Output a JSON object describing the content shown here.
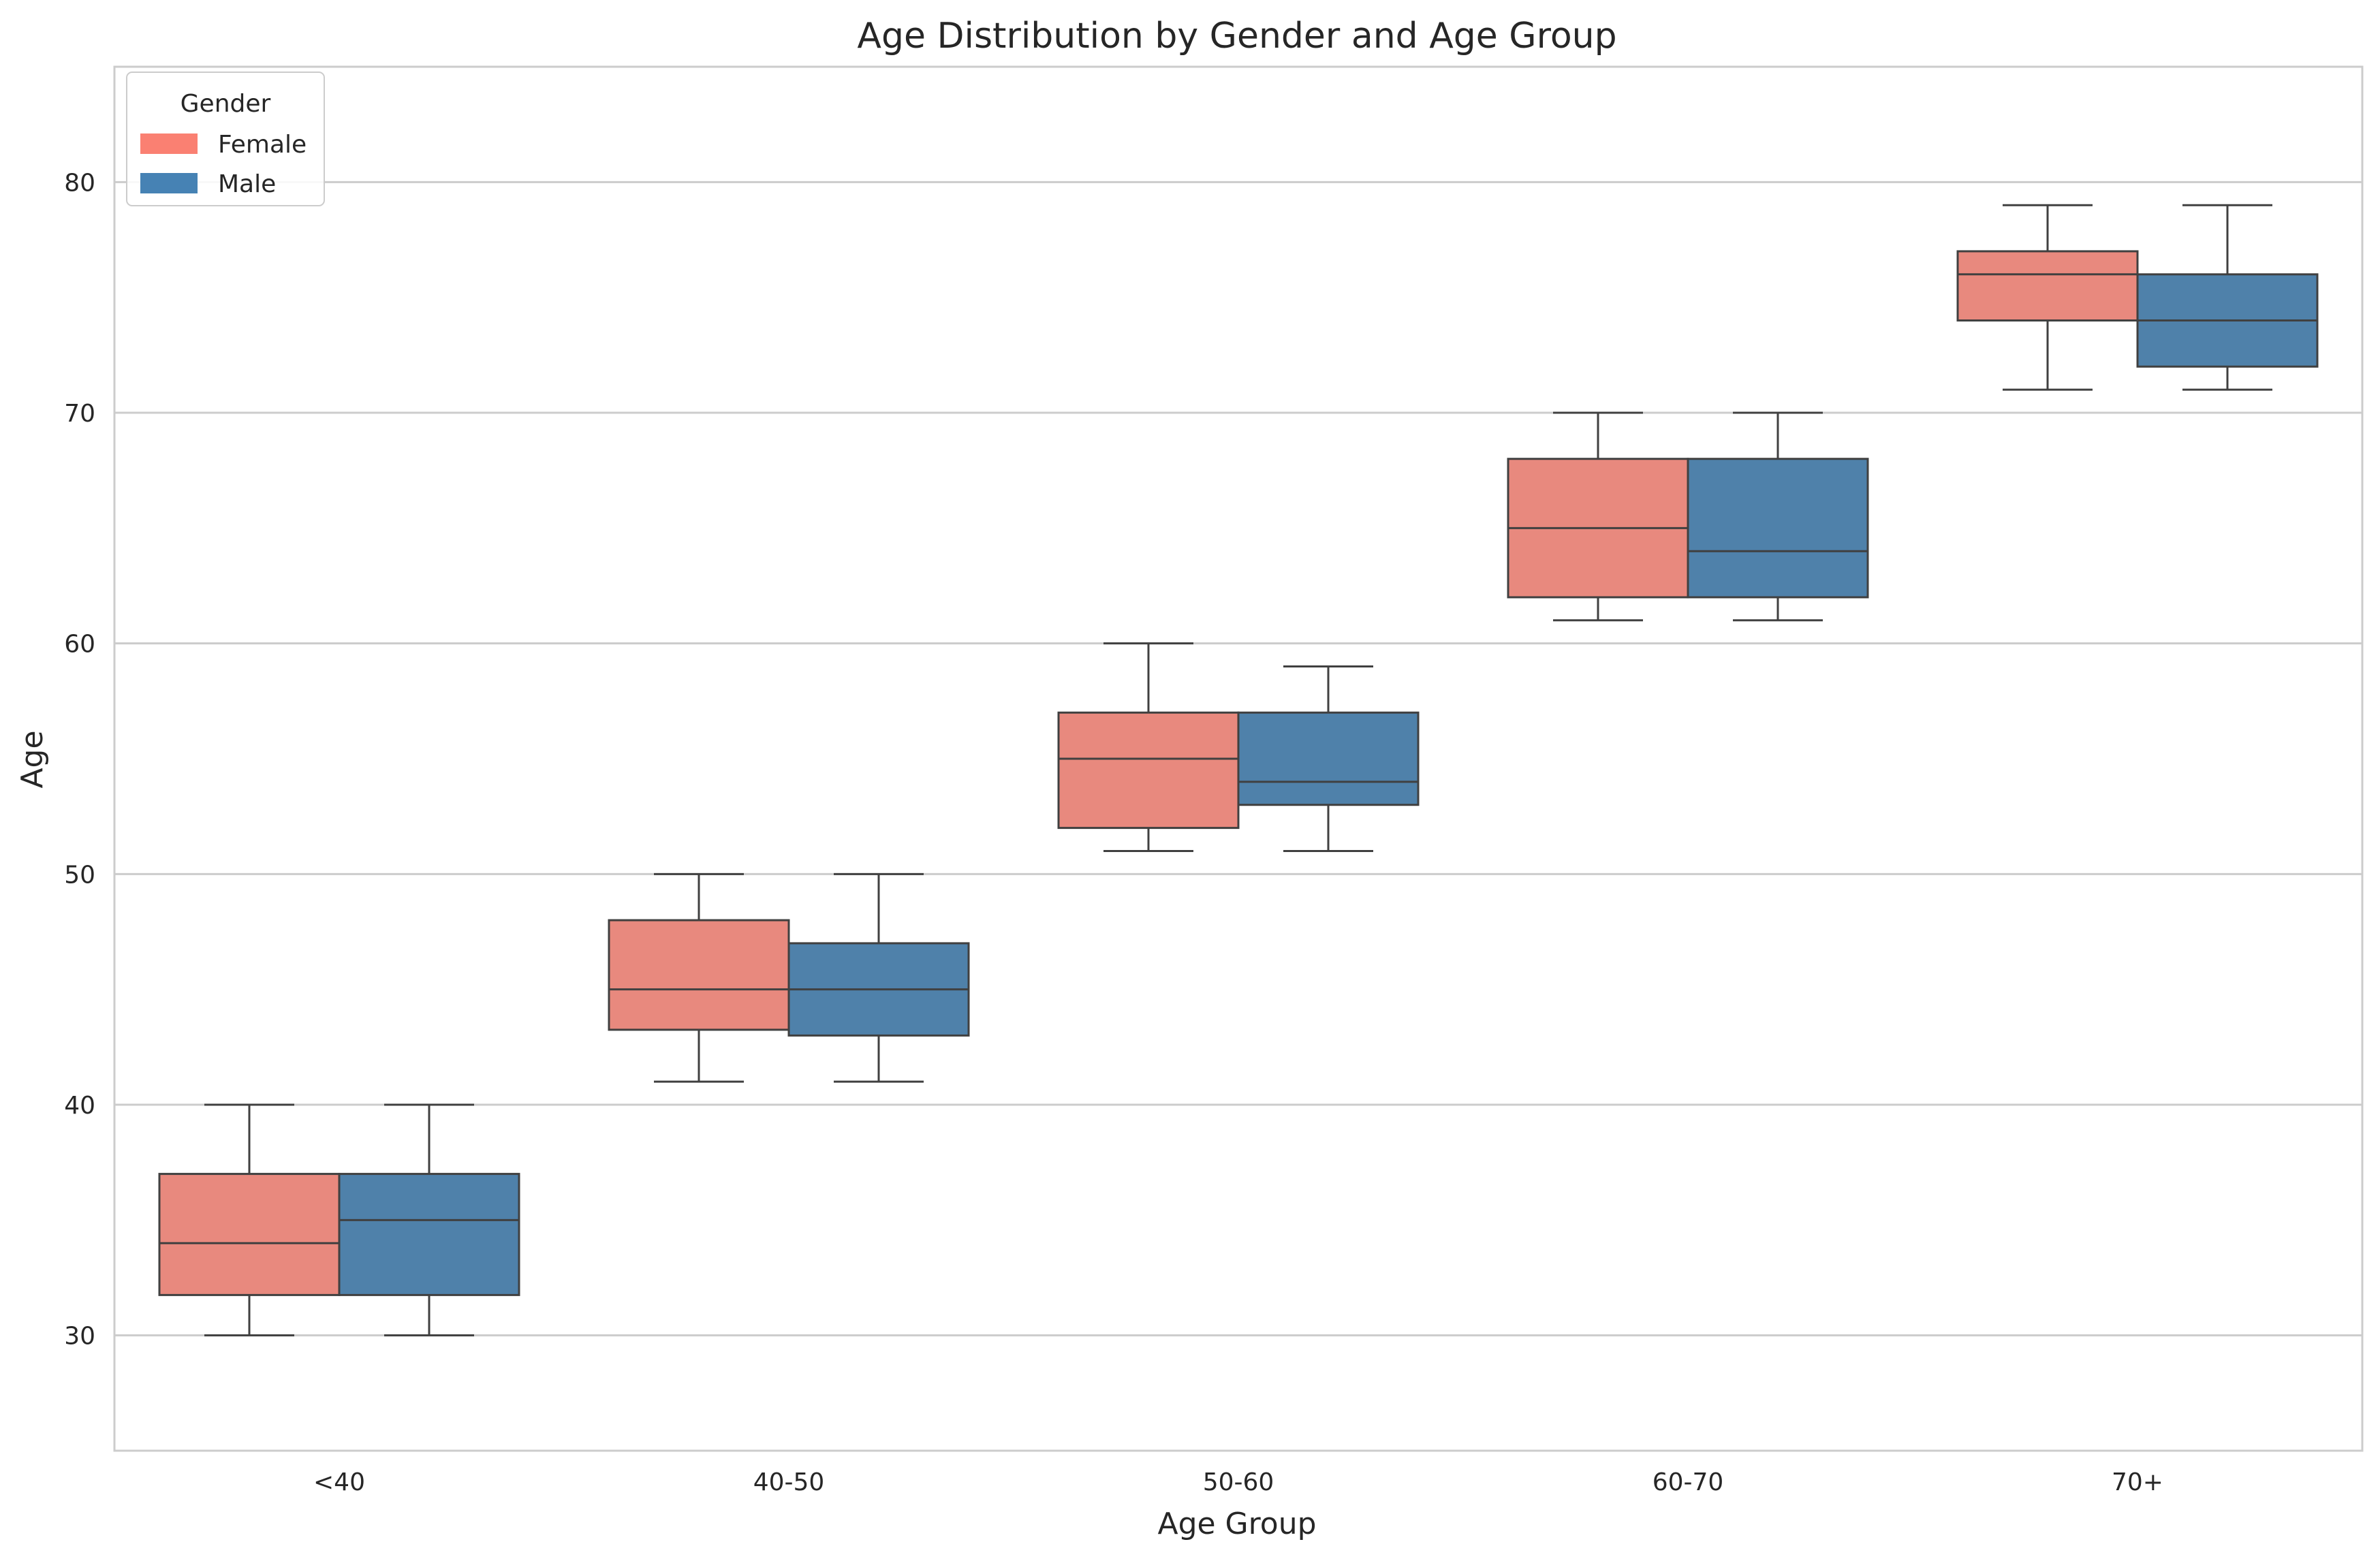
{
  "chart_data": {
    "type": "box",
    "title": "Age Distribution by Gender and Age Group",
    "xlabel": "Age Group",
    "ylabel": "Age",
    "categories": [
      "<40",
      "40-50",
      "50-60",
      "60-70",
      "70+"
    ],
    "ylim": [
      25,
      85
    ],
    "yticks": [
      "30",
      "40",
      "50",
      "60",
      "70",
      "80"
    ],
    "grid": "horizontal",
    "legend": {
      "title": "Gender",
      "placement": "top-left",
      "entries": [
        "Female",
        "Male"
      ]
    },
    "series": [
      {
        "name": "Female",
        "color": "#e8897e",
        "legend_color": "#fa8072",
        "boxes": [
          {
            "min": 30,
            "q1": 31.75,
            "median": 34,
            "q3": 37,
            "max": 40
          },
          {
            "min": 41,
            "q1": 43.25,
            "median": 45,
            "q3": 48,
            "max": 50
          },
          {
            "min": 51,
            "q1": 52,
            "median": 55,
            "q3": 57,
            "max": 60
          },
          {
            "min": 61,
            "q1": 62,
            "median": 65,
            "q3": 68,
            "max": 70
          },
          {
            "min": 71,
            "q1": 74,
            "median": 76,
            "q3": 77,
            "max": 79
          }
        ]
      },
      {
        "name": "Male",
        "color": "#4f81aa",
        "legend_color": "#4682b4",
        "boxes": [
          {
            "min": 30,
            "q1": 31.75,
            "median": 35,
            "q3": 37,
            "max": 40
          },
          {
            "min": 41,
            "q1": 43,
            "median": 45,
            "q3": 47,
            "max": 50
          },
          {
            "min": 51,
            "q1": 53,
            "median": 54,
            "q3": 57,
            "max": 59
          },
          {
            "min": 61,
            "q1": 62,
            "median": 64,
            "q3": 68,
            "max": 70
          },
          {
            "min": 71,
            "q1": 72,
            "median": 74,
            "q3": 76,
            "max": 79
          }
        ]
      }
    ]
  },
  "colors": {
    "grid": "#cccccc",
    "spine": "#cccccc",
    "line": "#404040",
    "text": "#262626"
  }
}
